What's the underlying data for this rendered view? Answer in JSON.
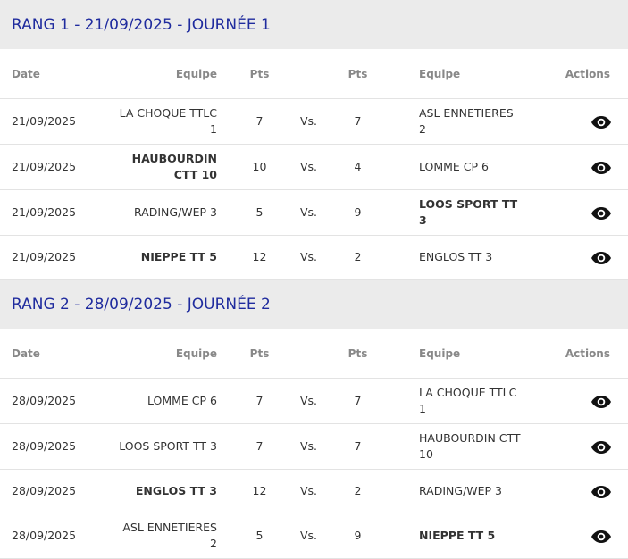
{
  "sections": [
    {
      "title": "RANG 1 - 21/09/2025 - JOURNÉE 1",
      "header": {
        "date": "Date",
        "home": "Equipe",
        "home_pts": "Pts",
        "away_pts": "Pts",
        "away": "Equipe",
        "actions": "Actions"
      },
      "rows": [
        {
          "date": "21/09/2025",
          "home": "LA CHOQUE TTLC 1",
          "home_pts": 7,
          "vs": "Vs.",
          "away_pts": 7,
          "away": "ASL ENNETIERES 2",
          "winner": "none"
        },
        {
          "date": "21/09/2025",
          "home": "HAUBOURDIN CTT 10",
          "home_pts": 10,
          "vs": "Vs.",
          "away_pts": 4,
          "away": "LOMME CP 6",
          "winner": "home"
        },
        {
          "date": "21/09/2025",
          "home": "RADING/WEP 3",
          "home_pts": 5,
          "vs": "Vs.",
          "away_pts": 9,
          "away": "LOOS SPORT TT 3",
          "winner": "away"
        },
        {
          "date": "21/09/2025",
          "home": "NIEPPE TT 5",
          "home_pts": 12,
          "vs": "Vs.",
          "away_pts": 2,
          "away": "ENGLOS TT 3",
          "winner": "home"
        }
      ]
    },
    {
      "title": "RANG 2 - 28/09/2025 - JOURNÉE 2",
      "header": {
        "date": "Date",
        "home": "Equipe",
        "home_pts": "Pts",
        "away_pts": "Pts",
        "away": "Equipe",
        "actions": "Actions"
      },
      "rows": [
        {
          "date": "28/09/2025",
          "home": "LOMME CP 6",
          "home_pts": 7,
          "vs": "Vs.",
          "away_pts": 7,
          "away": "LA CHOQUE TTLC 1",
          "winner": "none"
        },
        {
          "date": "28/09/2025",
          "home": "LOOS SPORT TT 3",
          "home_pts": 7,
          "vs": "Vs.",
          "away_pts": 7,
          "away": "HAUBOURDIN CTT 10",
          "winner": "none"
        },
        {
          "date": "28/09/2025",
          "home": "ENGLOS TT 3",
          "home_pts": 12,
          "vs": "Vs.",
          "away_pts": 2,
          "away": "RADING/WEP 3",
          "winner": "home"
        },
        {
          "date": "28/09/2025",
          "home": "ASL ENNETIERES 2",
          "home_pts": 5,
          "vs": "Vs.",
          "away_pts": 9,
          "away": "NIEPPE TT 5",
          "winner": "away"
        }
      ]
    }
  ]
}
